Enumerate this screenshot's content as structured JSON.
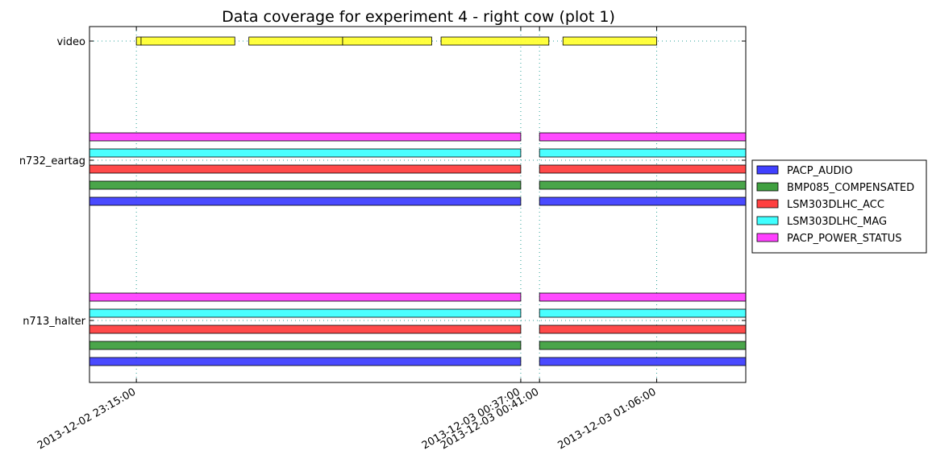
{
  "chart_data": {
    "type": "gantt",
    "title": "Data coverage for experiment 4 - right cow (plot 1)",
    "xlabel": "",
    "ylabel": "",
    "x_ticks": [
      {
        "label": "2013-12-02 23:15:00",
        "value": "2013-12-02 23:15:00"
      },
      {
        "label": "2013-12-03 00:37:00",
        "value": "2013-12-03 00:37:00"
      },
      {
        "label": "2013-12-03 00:41:00",
        "value": "2013-12-03 00:41:00"
      },
      {
        "label": "2013-12-03 01:06:00",
        "value": "2013-12-03 01:06:00"
      }
    ],
    "xlim": [
      "2013-12-02 23:05:00",
      "2013-12-03 01:25:00"
    ],
    "grid": true,
    "legend_placement": "outside-right",
    "rows": [
      {
        "label": "video",
        "channels": [
          {
            "name": "video",
            "color": "#ffff33",
            "intervals": [
              [
                "2013-12-02 23:15:00",
                "2013-12-02 23:16:00"
              ],
              [
                "2013-12-02 23:16:00",
                "2013-12-02 23:36:00"
              ],
              [
                "2013-12-02 23:39:00",
                "2013-12-02 23:59:00"
              ],
              [
                "2013-12-02 23:59:00",
                "2013-12-03 00:18:00"
              ],
              [
                "2013-12-03 00:20:00",
                "2013-12-03 00:43:00"
              ],
              [
                "2013-12-03 00:46:00",
                "2013-12-03 01:06:00"
              ]
            ]
          }
        ]
      },
      {
        "label": "n732_eartag",
        "channels": [
          {
            "name": "PACP_AUDIO",
            "color": "#4040ff",
            "intervals": [
              [
                "2013-12-02 23:05:00",
                "2013-12-03 00:37:00"
              ],
              [
                "2013-12-03 00:41:00",
                "2013-12-03 01:25:00"
              ]
            ]
          },
          {
            "name": "BMP085_COMPENSATED",
            "color": "#40a040",
            "intervals": [
              [
                "2013-12-02 23:05:00",
                "2013-12-03 00:37:00"
              ],
              [
                "2013-12-03 00:41:00",
                "2013-12-03 01:25:00"
              ]
            ]
          },
          {
            "name": "LSM303DLHC_ACC",
            "color": "#ff4040",
            "intervals": [
              [
                "2013-12-02 23:05:00",
                "2013-12-03 00:37:00"
              ],
              [
                "2013-12-03 00:41:00",
                "2013-12-03 01:25:00"
              ]
            ]
          },
          {
            "name": "LSM303DLHC_MAG",
            "color": "#40ffff",
            "intervals": [
              [
                "2013-12-02 23:05:00",
                "2013-12-03 00:37:00"
              ],
              [
                "2013-12-03 00:41:00",
                "2013-12-03 01:25:00"
              ]
            ]
          },
          {
            "name": "PACP_POWER_STATUS",
            "color": "#ff40ff",
            "intervals": [
              [
                "2013-12-02 23:05:00",
                "2013-12-03 00:37:00"
              ],
              [
                "2013-12-03 00:41:00",
                "2013-12-03 01:25:00"
              ]
            ]
          }
        ]
      },
      {
        "label": "n713_halter",
        "channels": [
          {
            "name": "PACP_AUDIO",
            "color": "#4040ff",
            "intervals": [
              [
                "2013-12-02 23:05:00",
                "2013-12-03 00:37:00"
              ],
              [
                "2013-12-03 00:41:00",
                "2013-12-03 01:25:00"
              ]
            ]
          },
          {
            "name": "BMP085_COMPENSATED",
            "color": "#40a040",
            "intervals": [
              [
                "2013-12-02 23:05:00",
                "2013-12-03 00:37:00"
              ],
              [
                "2013-12-03 00:41:00",
                "2013-12-03 01:25:00"
              ]
            ]
          },
          {
            "name": "LSM303DLHC_ACC",
            "color": "#ff4040",
            "intervals": [
              [
                "2013-12-02 23:05:00",
                "2013-12-03 00:37:00"
              ],
              [
                "2013-12-03 00:41:00",
                "2013-12-03 01:25:00"
              ]
            ]
          },
          {
            "name": "LSM303DLHC_MAG",
            "color": "#40ffff",
            "intervals": [
              [
                "2013-12-02 23:05:00",
                "2013-12-03 00:37:00"
              ],
              [
                "2013-12-03 00:41:00",
                "2013-12-03 01:25:00"
              ]
            ]
          },
          {
            "name": "PACP_POWER_STATUS",
            "color": "#ff40ff",
            "intervals": [
              [
                "2013-12-02 23:05:00",
                "2013-12-03 00:37:00"
              ],
              [
                "2013-12-03 00:41:00",
                "2013-12-03 01:25:00"
              ]
            ]
          }
        ]
      }
    ],
    "legend": [
      {
        "name": "PACP_AUDIO",
        "color": "#4040ff"
      },
      {
        "name": "BMP085_COMPENSATED",
        "color": "#40a040"
      },
      {
        "name": "LSM303DLHC_ACC",
        "color": "#ff4040"
      },
      {
        "name": "LSM303DLHC_MAG",
        "color": "#40ffff"
      },
      {
        "name": "PACP_POWER_STATUS",
        "color": "#ff40ff"
      }
    ]
  }
}
